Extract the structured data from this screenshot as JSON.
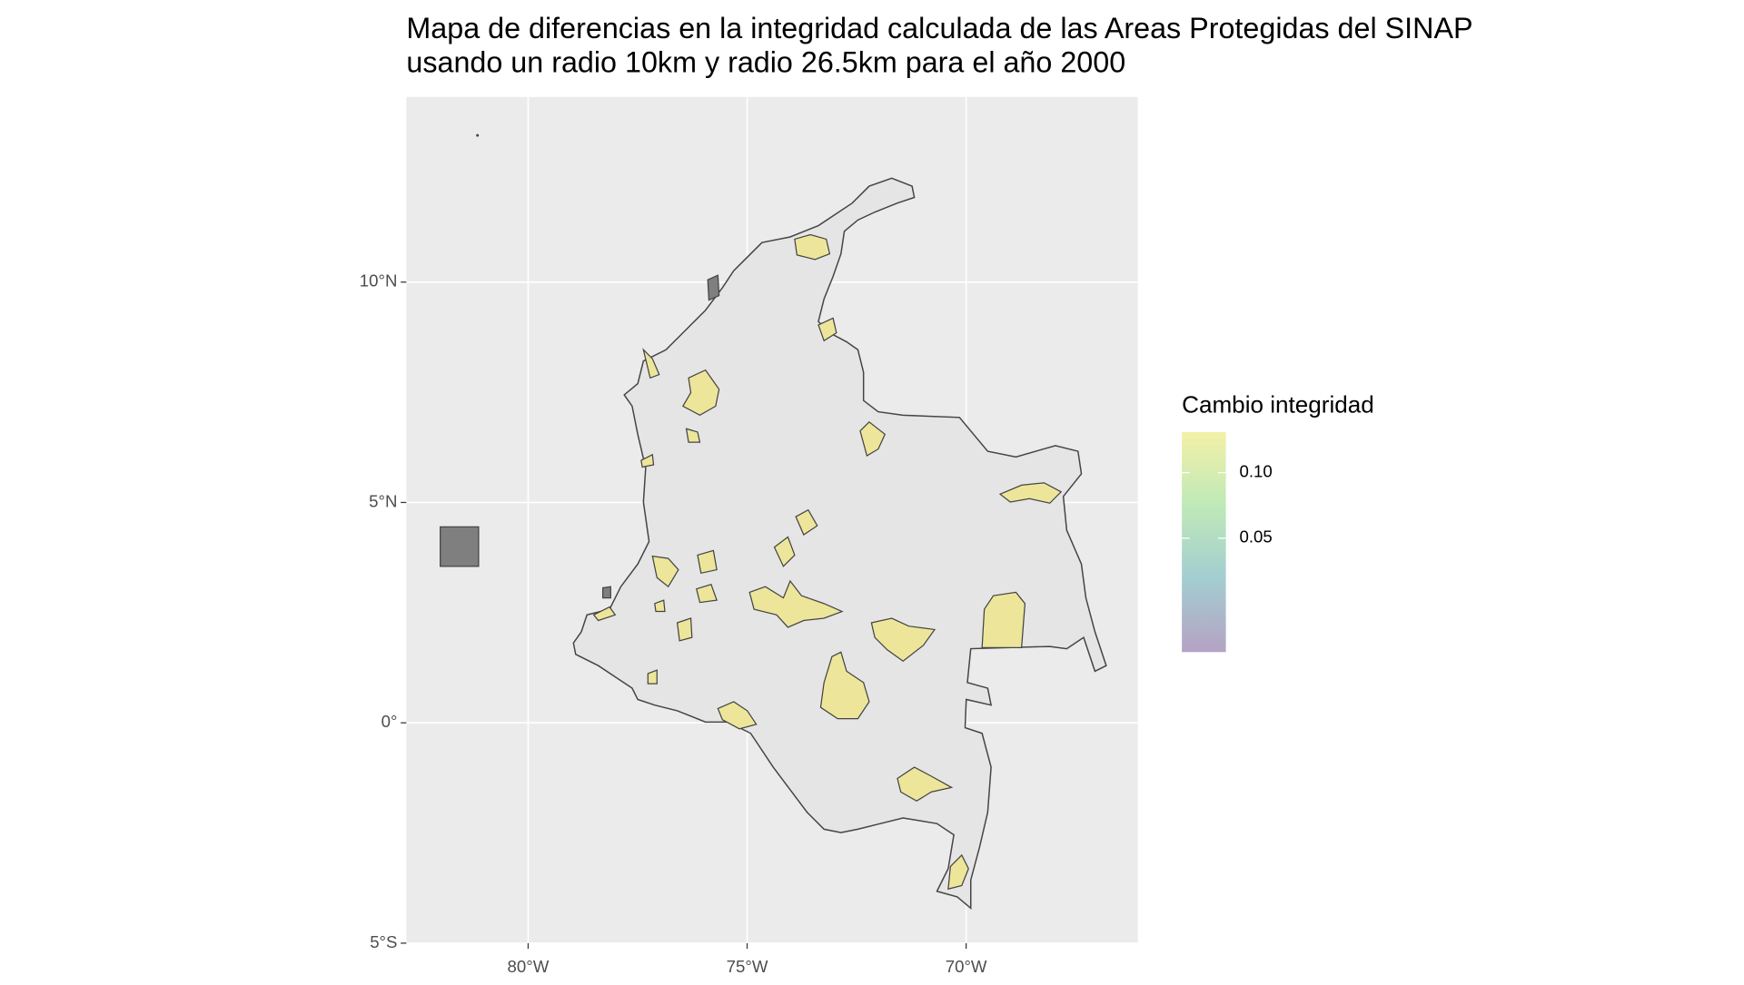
{
  "chart_data": {
    "type": "map",
    "title": [
      "Mapa de diferencias en la integridad calculada de las Areas Protegidas del SINAP",
      "usando un radio 10km y radio 26.5km para el año 2000"
    ],
    "xlim": [
      -82.78,
      -66.08
    ],
    "ylim": [
      -5,
      14.2
    ],
    "xticks": [
      {
        "value": -80,
        "label": "80°W"
      },
      {
        "value": -75,
        "label": "75°W"
      },
      {
        "value": -70,
        "label": "70°W"
      }
    ],
    "yticks": [
      {
        "value": -5,
        "label": "5°S"
      },
      {
        "value": 0,
        "label": "0°"
      },
      {
        "value": 5,
        "label": "5°N"
      },
      {
        "value": 10,
        "label": "10°N"
      }
    ],
    "grid": true,
    "legend": {
      "title": "Cambio integridad",
      "colorlim": [
        -0.037,
        0.131
      ],
      "ticks": [
        {
          "value": 0.05,
          "label": "0.05"
        },
        {
          "value": 0.1,
          "label": "0.10"
        }
      ],
      "colors": [
        "#b5a2c5",
        "#a3cdd0",
        "#bfe9b8",
        "#f3f0a7"
      ]
    }
  }
}
